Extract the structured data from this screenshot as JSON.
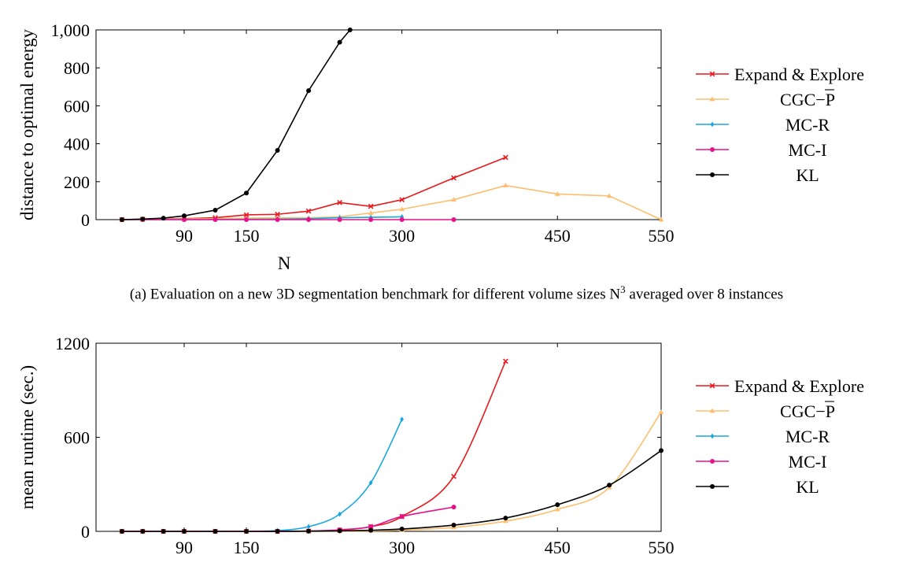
{
  "caption": {
    "prefix": "(a) Evaluation on a new 3D segmentation benchmark for different volume sizes N",
    "sup": "3",
    "suffix": " averaged over 8 instances"
  },
  "chart_data": [
    {
      "type": "line",
      "xlabel": "N",
      "ylabel": "distance to optimal energy",
      "xlim": [
        5,
        550
      ],
      "ylim": [
        0,
        1000
      ],
      "xticks": [
        90,
        150,
        300,
        450,
        550
      ],
      "xtick_labels": [
        "90",
        "150",
        "300",
        "450",
        "550"
      ],
      "yticks": [
        0,
        200,
        400,
        600,
        800,
        1000
      ],
      "ytick_labels": [
        "0",
        "200",
        "400",
        "600",
        "800",
        "1,000"
      ],
      "grid": false,
      "legend_position": "right",
      "series": [
        {
          "name": "Expand & Explore",
          "color": "#e8191c",
          "marker": "x",
          "x": [
            30,
            50,
            90,
            120,
            150,
            180,
            210,
            240,
            270,
            300,
            350,
            400
          ],
          "y": [
            0,
            2,
            5,
            10,
            25,
            28,
            45,
            90,
            70,
            105,
            220,
            328
          ]
        },
        {
          "name": "CGC−P",
          "color": "#fdbf6f",
          "marker": "triangle",
          "x": [
            30,
            50,
            90,
            120,
            150,
            180,
            210,
            240,
            270,
            300,
            350,
            400,
            450,
            500,
            550
          ],
          "y": [
            0,
            1,
            3,
            5,
            8,
            10,
            10,
            15,
            35,
            55,
            105,
            180,
            135,
            125,
            0
          ]
        },
        {
          "name": "MC-R",
          "color": "#1aa7e0",
          "marker": "diamond",
          "x": [
            30,
            50,
            90,
            120,
            150,
            180,
            210,
            240,
            270,
            300
          ],
          "y": [
            0,
            0,
            0,
            1,
            2,
            3,
            5,
            10,
            12,
            15
          ]
        },
        {
          "name": "MC-I",
          "color": "#e8118c",
          "marker": "circle",
          "x": [
            30,
            50,
            90,
            120,
            150,
            180,
            210,
            240,
            270,
            300,
            350
          ],
          "y": [
            0,
            0,
            0,
            0,
            0,
            0,
            0,
            0,
            0,
            0,
            0
          ]
        },
        {
          "name": "KL",
          "color": "#000000",
          "marker": "circle",
          "x": [
            30,
            50,
            70,
            90,
            120,
            150,
            180,
            210,
            240,
            250
          ],
          "y": [
            0,
            3,
            8,
            20,
            50,
            140,
            365,
            680,
            935,
            1000
          ]
        }
      ]
    },
    {
      "type": "line",
      "xlabel": "",
      "ylabel": "mean runtime (sec.)",
      "xlim": [
        5,
        550
      ],
      "ylim": [
        0,
        1200
      ],
      "xticks": [
        90,
        150,
        300,
        450,
        550
      ],
      "xtick_labels": [
        "90",
        "150",
        "300",
        "450",
        "550"
      ],
      "yticks": [
        0,
        600,
        1200
      ],
      "ytick_labels": [
        "0",
        "600",
        "1200"
      ],
      "grid": false,
      "legend_position": "right",
      "series": [
        {
          "name": "Expand & Explore",
          "color": "#e8191c",
          "marker": "x",
          "x": [
            30,
            50,
            70,
            90,
            120,
            150,
            180,
            210,
            240,
            270,
            300,
            350,
            400
          ],
          "y": [
            0,
            0,
            0,
            0,
            0,
            0,
            0,
            2,
            8,
            30,
            95,
            350,
            1085
          ]
        },
        {
          "name": "CGC−P",
          "color": "#fdbf6f",
          "marker": "triangle",
          "x": [
            30,
            50,
            70,
            90,
            120,
            150,
            180,
            210,
            240,
            270,
            300,
            350,
            400,
            450,
            500,
            550
          ],
          "y": [
            0,
            0,
            0,
            0,
            0,
            0,
            0,
            0,
            1,
            3,
            8,
            25,
            65,
            140,
            280,
            760
          ]
        },
        {
          "name": "MC-R",
          "color": "#1aa7e0",
          "marker": "diamond",
          "x": [
            30,
            50,
            70,
            90,
            120,
            150,
            180,
            210,
            240,
            270,
            300
          ],
          "y": [
            0,
            0,
            0,
            0,
            0,
            1,
            5,
            30,
            110,
            310,
            715
          ]
        },
        {
          "name": "MC-I",
          "color": "#e8118c",
          "marker": "circle",
          "x": [
            30,
            50,
            70,
            90,
            120,
            150,
            180,
            210,
            240,
            270,
            300,
            350
          ],
          "y": [
            0,
            0,
            0,
            0,
            0,
            0,
            0,
            2,
            10,
            30,
            95,
            155
          ]
        },
        {
          "name": "KL",
          "color": "#000000",
          "marker": "circle",
          "x": [
            30,
            50,
            70,
            90,
            120,
            150,
            180,
            210,
            240,
            270,
            300,
            350,
            400,
            450,
            500,
            550
          ],
          "y": [
            0,
            0,
            0,
            0,
            0,
            0,
            0,
            1,
            3,
            7,
            15,
            40,
            85,
            170,
            295,
            515
          ]
        }
      ]
    }
  ]
}
